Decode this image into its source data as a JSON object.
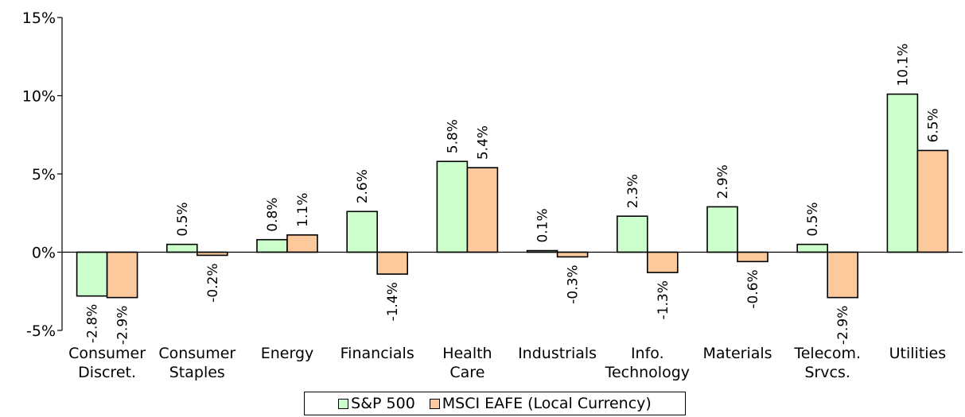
{
  "chart_data": {
    "type": "bar",
    "categories": [
      [
        "Consumer",
        "Discret."
      ],
      [
        "Consumer",
        "Staples"
      ],
      [
        "Energy"
      ],
      [
        "Financials"
      ],
      [
        "Health",
        "Care"
      ],
      [
        "Industrials"
      ],
      [
        "Info.",
        "Technology"
      ],
      [
        "Materials"
      ],
      [
        "Telecom.",
        "Srvcs."
      ],
      [
        "Utilities"
      ]
    ],
    "series": [
      {
        "name": "S&P 500",
        "color": "#ccffcc",
        "values": [
          -2.8,
          0.5,
          0.8,
          2.6,
          5.8,
          0.1,
          2.3,
          2.9,
          0.5,
          10.1
        ],
        "labels": [
          "-2.8%",
          "0.5%",
          "0.8%",
          "2.6%",
          "5.8%",
          "0.1%",
          "2.3%",
          "2.9%",
          "0.5%",
          "10.1%"
        ]
      },
      {
        "name": "MSCI EAFE (Local Currency)",
        "color": "#fcc99c",
        "values": [
          -2.9,
          -0.2,
          1.1,
          -1.4,
          5.4,
          -0.3,
          -1.3,
          -0.6,
          -2.9,
          6.5
        ],
        "labels": [
          "-2.9%",
          "-0.2%",
          "1.1%",
          "-1.4%",
          "5.4%",
          "-0.3%",
          "-1.3%",
          "-0.6%",
          "-2.9%",
          "6.5%"
        ]
      }
    ],
    "ylim": [
      -5,
      15
    ],
    "yticks": [
      {
        "value": 15,
        "label": "15%"
      },
      {
        "value": 10,
        "label": "10%"
      },
      {
        "value": 5,
        "label": "5%"
      },
      {
        "value": 0,
        "label": "0%"
      },
      {
        "value": -5,
        "label": "-5%"
      }
    ],
    "title": "",
    "xlabel": "",
    "ylabel": "",
    "grid": false,
    "legend_position": "bottom"
  }
}
